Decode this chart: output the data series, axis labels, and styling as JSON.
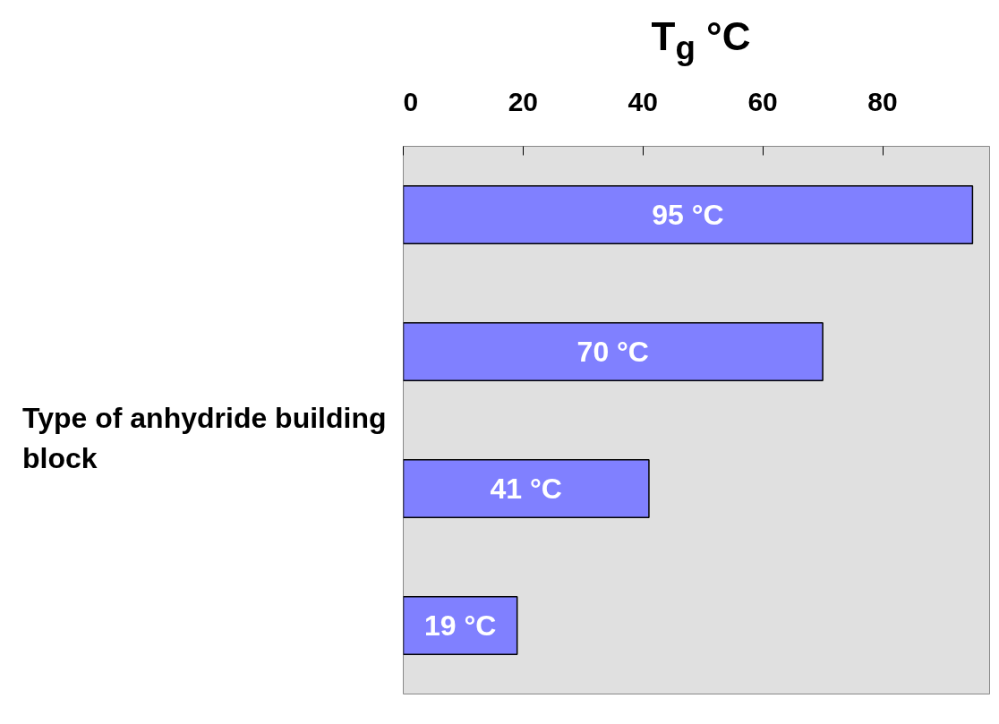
{
  "chart_data": {
    "type": "bar",
    "orientation": "horizontal",
    "xlabel": "T$_{g}$ °C",
    "ylabel": "Type of anhydride building block",
    "categories": [
      null,
      null,
      null,
      null
    ],
    "values": [
      95,
      70,
      41,
      19
    ],
    "value_labels": [
      "95 °C",
      "70 °C",
      "41 °C",
      "19 °C"
    ],
    "color": "#8080ff",
    "xlim": [
      0,
      98
    ],
    "xticks": [
      0,
      20,
      40,
      60,
      80
    ],
    "grid": false
  }
}
